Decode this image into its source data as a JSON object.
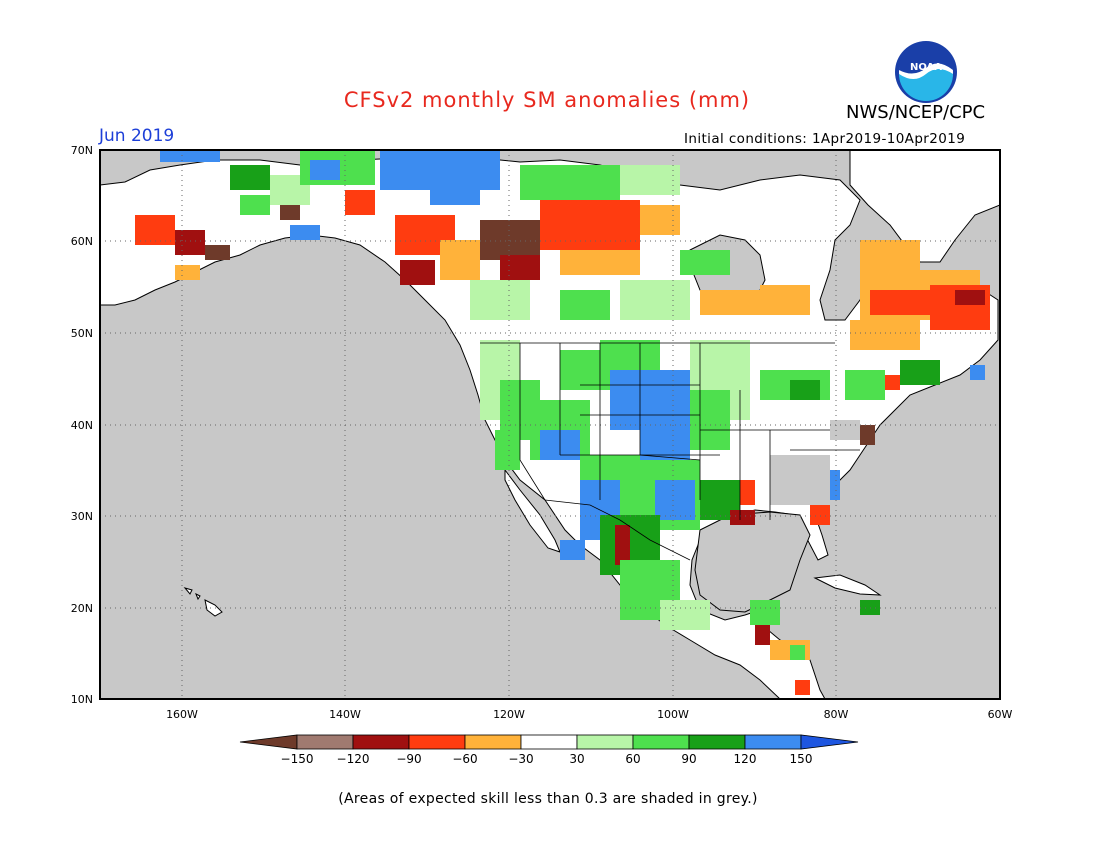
{
  "header": {
    "title": "CFSv2 monthly SM anomalies (mm)",
    "month": "Jun 2019",
    "org": "NWS/NCEP/CPC",
    "initial_conditions": "Initial conditions: 1Apr2019-10Apr2019",
    "logo_text": "NOAA"
  },
  "map": {
    "lat_labels": [
      "70N",
      "60N",
      "50N",
      "40N",
      "30N",
      "20N",
      "10N"
    ],
    "lon_labels": [
      "160W",
      "140W",
      "120W",
      "100W",
      "80W",
      "60W"
    ]
  },
  "colorbar": {
    "labels": [
      "-150",
      "-120",
      "-90",
      "-60",
      "-30",
      "30",
      "60",
      "90",
      "120",
      "150"
    ],
    "colors": [
      "#6e3a2a",
      "#a07a70",
      "#a01010",
      "#ff3c10",
      "#ffb23a",
      "#ffffff",
      "#b8f5a8",
      "#4ee04e",
      "#18a018",
      "#3c8cf0",
      "#1e56e0"
    ]
  },
  "footnote": "(Areas of expected skill less than 0.3 are shaded in grey.)",
  "colors": {
    "ocean": "#c8c8c8",
    "land_low_skill": "#ffffff",
    "title": "#e8281e",
    "month": "#1d3fd8"
  }
}
